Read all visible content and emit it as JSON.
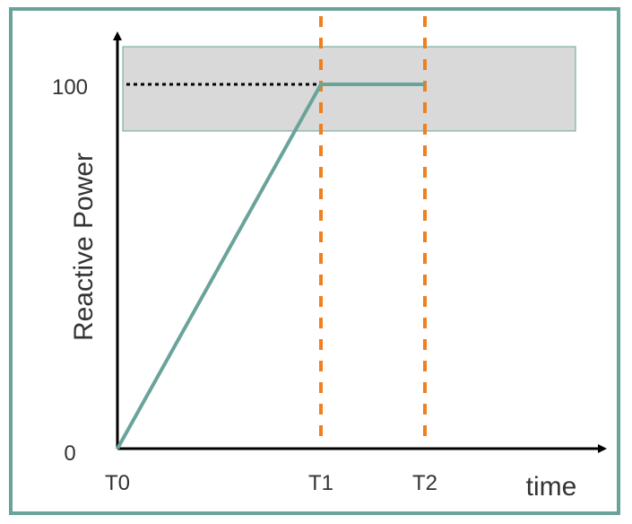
{
  "chart_data": {
    "type": "line",
    "xlabel": "time",
    "ylabel": "Reactive Power",
    "x_ticks": [
      "T0",
      "T1",
      "T2"
    ],
    "y_ticks": [
      "0",
      "100"
    ],
    "series": [
      {
        "points": [
          {
            "x": "T0",
            "y": 0
          },
          {
            "x": "T1",
            "y": 100
          },
          {
            "x": "T2",
            "y": 100
          }
        ]
      }
    ],
    "reference_lines": [
      {
        "type": "horizontal",
        "y": 100,
        "style": "dotted",
        "color": "#000000",
        "from": "T0",
        "to": "T1"
      },
      {
        "type": "vertical",
        "x": "T1",
        "style": "dashed",
        "color": "#f07f1f"
      },
      {
        "type": "vertical",
        "x": "T2",
        "style": "dashed",
        "color": "#f07f1f"
      }
    ],
    "shaded_band": {
      "color": "#d9d9d9",
      "border": "#6aa39a"
    },
    "colors": {
      "line": "#6aa39a",
      "frame": "#6aa39a",
      "axis": "#000000",
      "text": "#333333"
    }
  }
}
